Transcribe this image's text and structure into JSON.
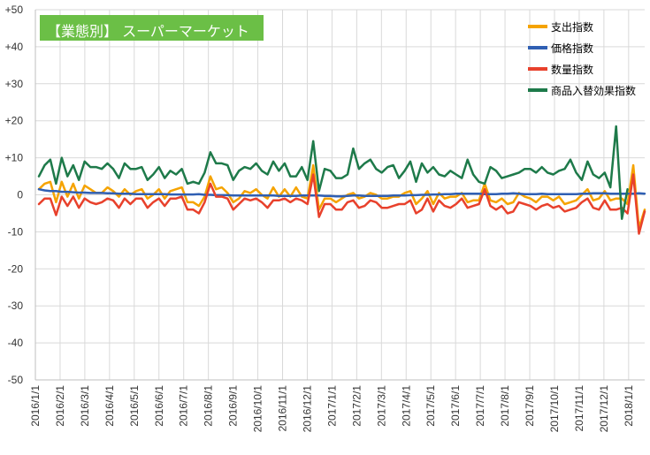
{
  "chart_data": {
    "type": "line",
    "title": "【業態別】 スーパーマーケット",
    "ylim": [
      -50,
      50
    ],
    "yticks": [
      "+50",
      "+40",
      "+30",
      "+20",
      "+10",
      "0",
      "-10",
      "-20",
      "-30",
      "-40",
      "-50"
    ],
    "x_tick_labels": [
      "2016/1/1",
      "2016/2/1",
      "2016/3/1",
      "2016/4/1",
      "2016/5/1",
      "2016/6/1",
      "2016/7/1",
      "2016/8/1",
      "2016/9/1",
      "2016/10/1",
      "2016/11/1",
      "2016/12/1",
      "2017/1/1",
      "2017/2/1",
      "2017/3/1",
      "2017/4/1",
      "2017/5/1",
      "2017/6/1",
      "2017/7/1",
      "2017/8/1",
      "2017/9/1",
      "2017/10/1",
      "2017/11/1",
      "2017/12/1",
      "2018/1/1"
    ],
    "x_start": "2016/1/1",
    "x_step": "week",
    "grid": true,
    "legend_position": "top-right",
    "series": [
      {
        "name": "支出指数",
        "color": "#f5a300",
        "values": [
          1.5,
          3,
          3.5,
          -2,
          3.5,
          -0.5,
          3,
          -1,
          2.5,
          1.5,
          0.5,
          0.5,
          2,
          1,
          -0.5,
          1.5,
          0,
          1,
          1.5,
          -1,
          0,
          1.5,
          -1,
          1,
          1.5,
          2,
          -2,
          -2,
          -3,
          -0.5,
          5,
          1.5,
          2,
          0.5,
          -2,
          -1,
          1,
          0.5,
          1.5,
          0,
          -1,
          2,
          -0.5,
          1.5,
          -0.5,
          2,
          -0.5,
          -1,
          8,
          -4,
          -1,
          -1,
          -2,
          -1,
          0,
          0.5,
          -1,
          -0.5,
          0.5,
          0,
          -1,
          -1,
          -0.5,
          -0.5,
          0.5,
          1,
          -2.5,
          -1,
          1,
          -2.5,
          0.5,
          -1,
          -0.5,
          -0.5,
          0.5,
          -2,
          -1.5,
          -1.5,
          3,
          -1.5,
          -2,
          -1,
          -2.5,
          -2,
          0.5,
          -0.5,
          -1,
          -2,
          -0.5,
          -0.5,
          -1.5,
          -0.5,
          -2.5,
          -2,
          -1.5,
          0,
          1.5,
          -1.5,
          -1,
          1,
          -1.5,
          -1,
          -1,
          -2.5,
          8,
          -9,
          -4
        ]
      },
      {
        "name": "価格指数",
        "color": "#2f5fb3",
        "values": [
          1.5,
          1.2,
          1,
          1,
          0.8,
          0.8,
          0.7,
          0.6,
          0.6,
          0.5,
          0.5,
          0.5,
          0.4,
          0.4,
          0.3,
          0.3,
          0.3,
          0.2,
          0.2,
          0.2,
          0.2,
          0.2,
          0.2,
          0.1,
          0.1,
          0.1,
          0.1,
          0.1,
          0.2,
          0,
          0,
          -0.1,
          -0.1,
          -0.1,
          -0.2,
          -0.2,
          -0.2,
          -0.2,
          -0.2,
          -0.2,
          -0.2,
          -0.2,
          -0.3,
          -0.3,
          -0.3,
          -0.3,
          -0.2,
          -0.2,
          -0.2,
          -0.2,
          -0.3,
          -0.3,
          -0.4,
          -0.4,
          -0.3,
          -0.2,
          -0.2,
          -0.3,
          -0.3,
          -0.3,
          -0.3,
          -0.3,
          -0.2,
          -0.2,
          -0.2,
          -0.1,
          -0.1,
          0,
          0,
          0.1,
          0.1,
          0.2,
          0.2,
          0.3,
          0.3,
          0.3,
          0.3,
          0.3,
          0.2,
          0.2,
          0.2,
          0.3,
          0.3,
          0.4,
          0.3,
          0.2,
          0.2,
          0.2,
          0.3,
          0.2,
          0.2,
          0.2,
          0.2,
          0.2,
          0.2,
          0.3,
          0.3,
          0.4,
          0.4,
          0.4,
          0.3,
          0.3,
          0.3,
          0.3,
          0.3,
          0.4,
          0.3
        ]
      },
      {
        "name": "数量指数",
        "color": "#e8412c",
        "values": [
          -2.5,
          -1,
          -1,
          -5.5,
          -0.5,
          -3,
          -0.5,
          -3.5,
          -1,
          -2,
          -2.5,
          -2,
          -1,
          -1.5,
          -3.5,
          -1,
          -2.5,
          -1,
          -1,
          -3.5,
          -2,
          -1,
          -3,
          -1,
          -1,
          -0.5,
          -4,
          -4,
          -5,
          -2,
          3,
          -0.5,
          -0.5,
          -1,
          -4,
          -2.5,
          -1,
          -1.5,
          -1,
          -2,
          -3.5,
          -1.5,
          -1.5,
          -1,
          -2,
          -1,
          -1.5,
          -2.5,
          5.5,
          -6,
          -2.5,
          -2.5,
          -4,
          -4,
          -2,
          -1.5,
          -3.5,
          -3,
          -1.5,
          -2,
          -3.5,
          -3.5,
          -3,
          -2.5,
          -2.5,
          -1.5,
          -5,
          -4,
          -1,
          -4.5,
          -1.5,
          -3,
          -3.5,
          -2.5,
          -1,
          -3.5,
          -3,
          -2.5,
          1.5,
          -3,
          -4,
          -3,
          -5,
          -4.5,
          -2,
          -2.5,
          -3,
          -4,
          -3,
          -2.5,
          -3.5,
          -3,
          -4.5,
          -4,
          -3.5,
          -2,
          -1,
          -3.5,
          -4,
          -1.5,
          -4,
          -4,
          -3.5,
          -5,
          5.5,
          -10.5,
          -4.5
        ]
      },
      {
        "name": "商品入替効果指数",
        "color": "#1e7a4a",
        "values": [
          5,
          8,
          9.5,
          3,
          10,
          5,
          8,
          4,
          9,
          7.5,
          7.5,
          7,
          8.5,
          7,
          4.5,
          8.5,
          7,
          7,
          7.5,
          4,
          5.5,
          7.5,
          4.5,
          6.5,
          5.5,
          7,
          3,
          3.5,
          3,
          6,
          11.5,
          8.5,
          8.5,
          8,
          4,
          6.5,
          7.5,
          7,
          8.5,
          6.5,
          5.5,
          9,
          6.5,
          8.5,
          5,
          5,
          7.5,
          4,
          14.5,
          1,
          7,
          6.5,
          4.5,
          4.5,
          5.5,
          12.5,
          7,
          8.5,
          9.5,
          7,
          6,
          7.5,
          8,
          4.5,
          6.5,
          9,
          3.5,
          8.5,
          6,
          7.5,
          5.5,
          5,
          6.5,
          5.5,
          4.5,
          9.5,
          5.5,
          3.5,
          3,
          7.5,
          6.5,
          4.5,
          5,
          5.5,
          6,
          7,
          7,
          6,
          7.5,
          6,
          5.5,
          6.5,
          7,
          9.5,
          6,
          4,
          9,
          5.5,
          4.5,
          6,
          2,
          18.5,
          -6.5,
          1.5
        ]
      }
    ]
  }
}
